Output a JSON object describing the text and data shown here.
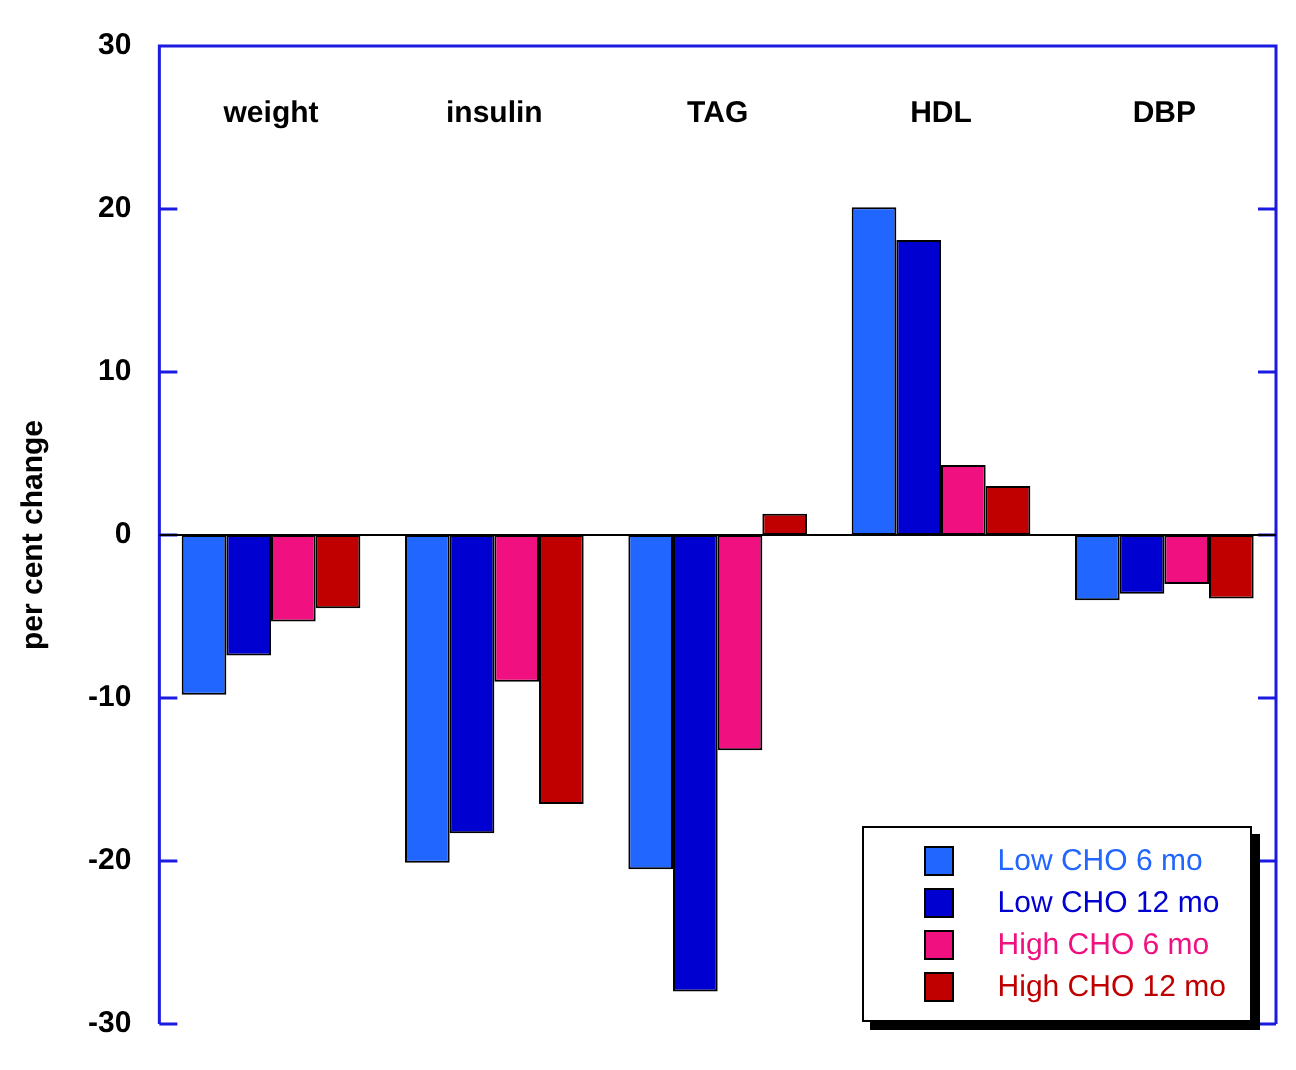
{
  "chart_data": {
    "type": "bar",
    "ylabel": "per cent change",
    "categories": [
      "weight",
      "insulin",
      "TAG",
      "HDL",
      "DBP"
    ],
    "series": [
      {
        "name": "Low CHO 6 mo",
        "color": "#2066ff",
        "values": [
          -9.8,
          -20.1,
          -20.5,
          20.1,
          -4.0
        ]
      },
      {
        "name": "Low CHO 12 mo",
        "color": "#0000d0",
        "values": [
          -7.4,
          -18.3,
          -28.0,
          18.1,
          -3.6
        ]
      },
      {
        "name": "High CHO 6 mo",
        "color": "#f0107f",
        "values": [
          -5.3,
          -9.0,
          -13.2,
          4.3,
          -3.0
        ]
      },
      {
        "name": "High CHO 12 mo",
        "color": "#c00000",
        "values": [
          -4.5,
          -16.5,
          1.3,
          3.0,
          -3.9
        ]
      }
    ],
    "ref_lines": [
      {
        "axis": "y",
        "value": 0,
        "color": "#000000"
      }
    ],
    "ylim": [
      -30,
      30
    ],
    "yticks": [
      -30,
      -20,
      -10,
      0,
      10,
      20,
      30
    ],
    "grid": false,
    "legend": "bottom right"
  }
}
